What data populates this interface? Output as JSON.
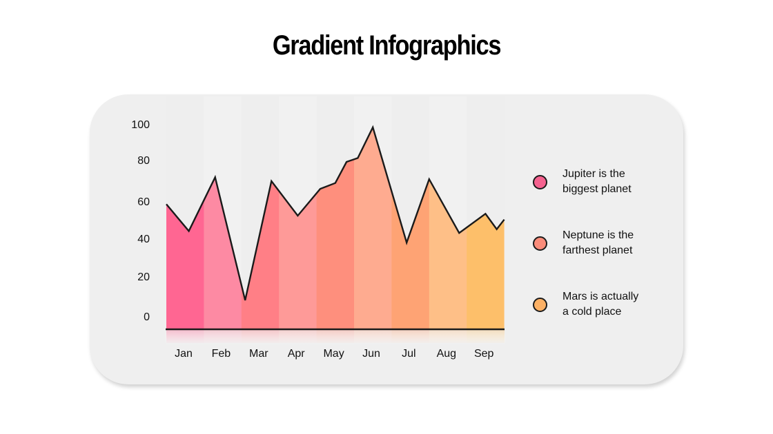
{
  "title": "Gradient Infographics",
  "chart_data": {
    "type": "area",
    "title": "Gradient Infographics",
    "xlabel": "",
    "ylabel": "",
    "categories": [
      "Jan",
      "Feb",
      "Mar",
      "Apr",
      "May",
      "Jun",
      "Jul",
      "Aug",
      "Sep"
    ],
    "yticks": [
      "100",
      "80",
      "60",
      "40",
      "20",
      "0"
    ],
    "ylim": [
      0,
      100
    ],
    "grid": false,
    "legend_position": "right",
    "points": [
      {
        "x": 0.0,
        "y": 59
      },
      {
        "x": 0.6,
        "y": 45
      },
      {
        "x": 1.3,
        "y": 73
      },
      {
        "x": 2.1,
        "y": 9
      },
      {
        "x": 2.8,
        "y": 71
      },
      {
        "x": 3.5,
        "y": 53
      },
      {
        "x": 4.1,
        "y": 67
      },
      {
        "x": 4.5,
        "y": 70
      },
      {
        "x": 4.8,
        "y": 81
      },
      {
        "x": 5.1,
        "y": 83
      },
      {
        "x": 5.5,
        "y": 99
      },
      {
        "x": 6.4,
        "y": 39
      },
      {
        "x": 7.0,
        "y": 72
      },
      {
        "x": 7.8,
        "y": 44
      },
      {
        "x": 8.5,
        "y": 54
      },
      {
        "x": 8.8,
        "y": 46
      },
      {
        "x": 9.0,
        "y": 51
      }
    ],
    "legend": [
      {
        "label": "Jupiter is the biggest planet",
        "color": "#f5628f"
      },
      {
        "label": "Neptune is the farthest planet",
        "color": "#fb8c7a"
      },
      {
        "label": "Mars is actually a cold place",
        "color": "#fdb165"
      }
    ],
    "band_colors": [
      "#ff6692",
      "#fd8aa3",
      "#ff7f86",
      "#fe9a98",
      "#fe8f7d",
      "#feab90",
      "#fea374",
      "#febf87",
      "#fdbf6a"
    ]
  },
  "legend": [
    {
      "line1": "Jupiter is the",
      "line2": "biggest planet",
      "color": "#f5628f"
    },
    {
      "line1": "Neptune is the",
      "line2": "farthest planet",
      "color": "#fb8c7a"
    },
    {
      "line1": "Mars is actually",
      "line2": "a cold place",
      "color": "#fdb165"
    }
  ]
}
